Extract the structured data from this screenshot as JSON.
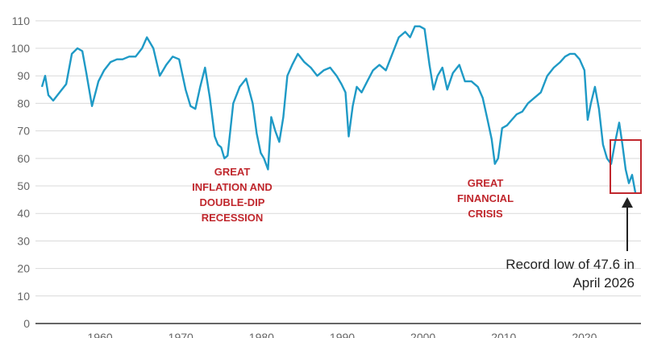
{
  "chart_data": {
    "type": "line",
    "title": "",
    "xlabel": "",
    "ylabel": "",
    "xlim": [
      1952,
      2027
    ],
    "ylim": [
      0,
      112
    ],
    "grid": true,
    "legend": "none",
    "y_ticks": [
      0,
      10,
      20,
      30,
      40,
      50,
      60,
      70,
      80,
      90,
      100,
      110
    ],
    "x_ticks": [
      1960,
      1970,
      1980,
      1990,
      2000,
      2010,
      2020
    ],
    "series": [
      {
        "color": "#1f9ac6",
        "x": [
          1952.8,
          1953.2,
          1953.6,
          1954.2,
          1955.0,
          1955.8,
          1956.5,
          1957.2,
          1957.8,
          1958.3,
          1959.0,
          1959.8,
          1960.5,
          1961.3,
          1962.1,
          1962.8,
          1963.6,
          1964.4,
          1965.2,
          1965.8,
          1966.6,
          1967.4,
          1968.2,
          1969.0,
          1969.8,
          1970.6,
          1971.2,
          1971.8,
          1972.4,
          1973.0,
          1973.6,
          1974.2,
          1974.6,
          1975.0,
          1975.4,
          1975.8,
          1976.5,
          1977.3,
          1978.1,
          1978.9,
          1979.4,
          1979.9,
          1980.3,
          1980.8,
          1981.2,
          1981.7,
          1982.2,
          1982.7,
          1983.2,
          1983.8,
          1984.5,
          1985.3,
          1986.1,
          1986.9,
          1987.7,
          1988.5,
          1989.3,
          1989.9,
          1990.4,
          1990.8,
          1991.3,
          1991.8,
          1992.4,
          1993.1,
          1993.8,
          1994.6,
          1995.4,
          1996.2,
          1997.0,
          1997.8,
          1998.4,
          1999.0,
          1999.6,
          2000.2,
          2000.8,
          2001.3,
          2001.8,
          2002.4,
          2003.0,
          2003.7,
          2004.5,
          2005.2,
          2006.0,
          2006.8,
          2007.4,
          2008.0,
          2008.5,
          2008.9,
          2009.3,
          2009.8,
          2010.4,
          2011.0,
          2011.6,
          2012.3,
          2013.0,
          2013.8,
          2014.6,
          2015.4,
          2016.2,
          2017.0,
          2017.6,
          2018.2,
          2018.8,
          2019.4,
          2020.0,
          2020.4,
          2020.8,
          2021.3,
          2021.8,
          2022.3,
          2022.8,
          2023.3,
          2023.8,
          2024.3,
          2024.7,
          2025.1,
          2025.5,
          2025.9,
          2026.3
        ],
        "values": [
          86,
          90,
          83,
          81,
          84,
          87,
          98,
          100,
          99,
          91,
          79,
          88,
          92,
          95,
          96,
          96,
          97,
          97,
          100,
          104,
          100,
          90,
          94,
          97,
          96,
          85,
          79,
          78,
          86,
          93,
          82,
          68,
          65,
          64,
          60,
          61,
          80,
          86,
          89,
          80,
          69,
          62,
          60,
          56,
          75,
          70,
          66,
          75,
          90,
          94,
          98,
          95,
          93,
          90,
          92,
          93,
          90,
          87,
          84,
          68,
          79,
          86,
          84,
          88,
          92,
          94,
          92,
          98,
          104,
          106,
          104,
          108,
          108,
          107,
          94,
          85,
          90,
          93,
          85,
          91,
          94,
          88,
          88,
          86,
          82,
          74,
          67,
          58,
          60,
          71,
          72,
          74,
          76,
          77,
          80,
          82,
          84,
          90,
          93,
          95,
          97,
          98,
          98,
          96,
          92,
          74,
          80,
          86,
          78,
          65,
          60,
          58,
          66,
          73,
          65,
          56,
          51,
          54,
          47.6
        ]
      }
    ],
    "annotations": {
      "great_inflation": [
        "GREAT",
        "INFLATION AND",
        "DOUBLE-DIP",
        "RECESSION"
      ],
      "financial_crisis": [
        "GREAT",
        "FINANCIAL",
        "CRISIS"
      ],
      "record_low": [
        "Record low of 47.6 in",
        "April 2026"
      ]
    },
    "colors": {
      "line": "#1f9ac6",
      "annotation": "#c0272d",
      "highlight_box": "#c0272d",
      "grid": "#d9d9d9",
      "axis": "#333333"
    }
  }
}
